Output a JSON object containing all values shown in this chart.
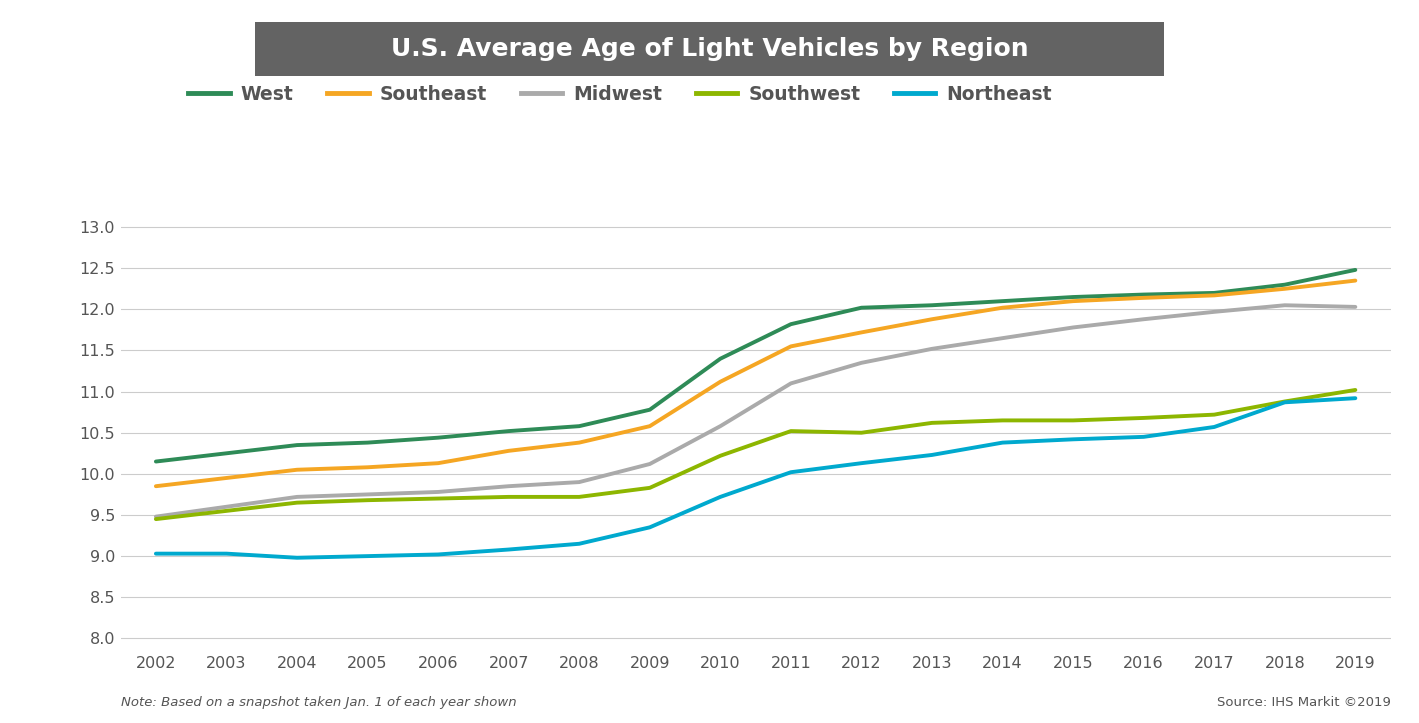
{
  "title": "U.S. Average Age of Light Vehicles by Region",
  "title_bg_color": "#636363",
  "title_text_color": "#ffffff",
  "years": [
    2002,
    2003,
    2004,
    2005,
    2006,
    2007,
    2008,
    2009,
    2010,
    2011,
    2012,
    2013,
    2014,
    2015,
    2016,
    2017,
    2018,
    2019
  ],
  "series": {
    "West": {
      "color": "#2e8b57",
      "values": [
        10.15,
        10.25,
        10.35,
        10.38,
        10.44,
        10.52,
        10.58,
        10.78,
        11.4,
        11.82,
        12.02,
        12.05,
        12.1,
        12.15,
        12.18,
        12.2,
        12.3,
        12.48
      ]
    },
    "Southeast": {
      "color": "#f5a623",
      "values": [
        9.85,
        9.95,
        10.05,
        10.08,
        10.13,
        10.28,
        10.38,
        10.58,
        11.12,
        11.55,
        11.72,
        11.88,
        12.02,
        12.1,
        12.14,
        12.17,
        12.25,
        12.35
      ]
    },
    "Midwest": {
      "color": "#aaaaaa",
      "values": [
        9.48,
        9.6,
        9.72,
        9.75,
        9.78,
        9.85,
        9.9,
        10.12,
        10.58,
        11.1,
        11.35,
        11.52,
        11.65,
        11.78,
        11.88,
        11.97,
        12.05,
        12.03
      ]
    },
    "Southwest": {
      "color": "#8db600",
      "values": [
        9.45,
        9.55,
        9.65,
        9.68,
        9.7,
        9.72,
        9.72,
        9.83,
        10.22,
        10.52,
        10.5,
        10.62,
        10.65,
        10.65,
        10.68,
        10.72,
        10.88,
        11.02
      ]
    },
    "Northeast": {
      "color": "#00a9ce",
      "values": [
        9.03,
        9.03,
        8.98,
        9.0,
        9.02,
        9.08,
        9.15,
        9.35,
        9.72,
        10.02,
        10.13,
        10.23,
        10.38,
        10.42,
        10.45,
        10.57,
        10.87,
        10.92
      ]
    }
  },
  "ylim": [
    7.85,
    13.3
  ],
  "yticks": [
    8.0,
    8.5,
    9.0,
    9.5,
    10.0,
    10.5,
    11.0,
    11.5,
    12.0,
    12.5,
    13.0
  ],
  "note_left": "Note: Based on a snapshot taken Jan. 1 of each year shown",
  "note_right": "Source: IHS Markit ©2019",
  "background_color": "#ffffff",
  "plot_bg_color": "#ffffff",
  "grid_color": "#cccccc",
  "line_width": 2.8,
  "legend_order": [
    "West",
    "Southeast",
    "Midwest",
    "Southwest",
    "Northeast"
  ]
}
